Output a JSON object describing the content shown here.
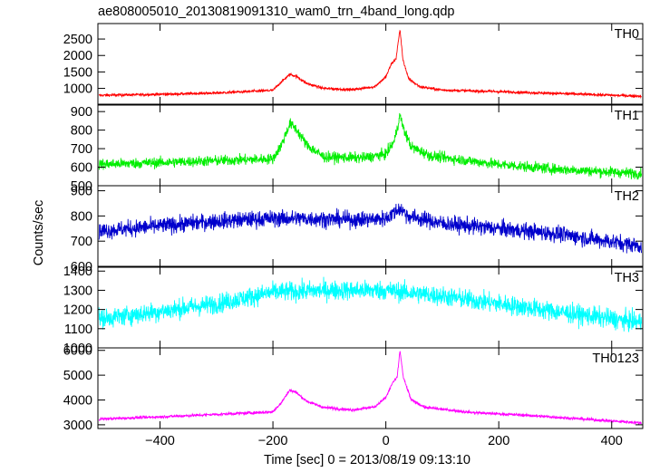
{
  "chart_data": {
    "type": "line",
    "title": "ae808005010_20130819091310_wam0_trn_4band_long.qdp",
    "xlabel": "Time [sec] 0 = 2013/08/19 09:13:10",
    "ylabel": "Counts/sec",
    "xlim": [
      -510,
      455
    ],
    "x_ticks": [
      -400,
      -200,
      0,
      200,
      400
    ],
    "x_tick_labels": [
      "−400",
      "−200",
      "0",
      "200",
      "400"
    ],
    "grid": false,
    "panels": [
      {
        "name": "TH0",
        "color": "#ff0000",
        "ylim": [
          520,
          2970
        ],
        "y_ticks": [
          1000,
          1500,
          2000,
          2500
        ],
        "y_tick_labels": [
          "1000",
          "1500",
          "2000",
          "2500"
        ],
        "noise": 40,
        "profile": [
          [
            -510,
            790
          ],
          [
            -400,
            820
          ],
          [
            -300,
            860
          ],
          [
            -200,
            940
          ],
          [
            -185,
            1200
          ],
          [
            -170,
            1420
          ],
          [
            -160,
            1380
          ],
          [
            -140,
            1150
          ],
          [
            -110,
            1000
          ],
          [
            -60,
            960
          ],
          [
            -20,
            1050
          ],
          [
            0,
            1350
          ],
          [
            10,
            1750
          ],
          [
            18,
            1900
          ],
          [
            25,
            2800
          ],
          [
            30,
            1900
          ],
          [
            40,
            1300
          ],
          [
            60,
            1050
          ],
          [
            100,
            950
          ],
          [
            200,
            900
          ],
          [
            300,
            850
          ],
          [
            455,
            760
          ]
        ]
      },
      {
        "name": "TH1",
        "color": "#00ee00",
        "ylim": [
          500,
          935
        ],
        "y_ticks": [
          500,
          600,
          700,
          800,
          900
        ],
        "y_tick_labels": [
          "500",
          "600",
          "700",
          "800",
          "900"
        ],
        "noise": 28,
        "profile": [
          [
            -510,
            615
          ],
          [
            -400,
            625
          ],
          [
            -300,
            635
          ],
          [
            -200,
            645
          ],
          [
            -185,
            720
          ],
          [
            -170,
            835
          ],
          [
            -160,
            810
          ],
          [
            -140,
            720
          ],
          [
            -110,
            655
          ],
          [
            -40,
            650
          ],
          [
            0,
            670
          ],
          [
            15,
            740
          ],
          [
            25,
            880
          ],
          [
            32,
            800
          ],
          [
            45,
            710
          ],
          [
            80,
            660
          ],
          [
            200,
            615
          ],
          [
            300,
            590
          ],
          [
            455,
            565
          ]
        ]
      },
      {
        "name": "TH2",
        "color": "#0000cc",
        "ylim": [
          600,
          920
        ],
        "y_ticks": [
          600,
          700,
          800,
          900
        ],
        "y_tick_labels": [
          "600",
          "700",
          "800",
          "900"
        ],
        "noise": 32,
        "profile": [
          [
            -510,
            740
          ],
          [
            -400,
            760
          ],
          [
            -300,
            780
          ],
          [
            -200,
            790
          ],
          [
            -150,
            790
          ],
          [
            -50,
            785
          ],
          [
            0,
            790
          ],
          [
            25,
            830
          ],
          [
            40,
            800
          ],
          [
            100,
            770
          ],
          [
            200,
            750
          ],
          [
            300,
            730
          ],
          [
            455,
            680
          ]
        ]
      },
      {
        "name": "TH3",
        "color": "#00ffff",
        "ylim": [
          1000,
          1420
        ],
        "y_ticks": [
          1000,
          1100,
          1200,
          1300,
          1400
        ],
        "y_tick_labels": [
          "1000",
          "1100",
          "1200",
          "1300",
          "1400"
        ],
        "noise": 50,
        "profile": [
          [
            -510,
            1150
          ],
          [
            -400,
            1190
          ],
          [
            -300,
            1230
          ],
          [
            -200,
            1290
          ],
          [
            -100,
            1300
          ],
          [
            0,
            1300
          ],
          [
            100,
            1270
          ],
          [
            200,
            1230
          ],
          [
            300,
            1190
          ],
          [
            455,
            1130
          ]
        ]
      },
      {
        "name": "TH0123",
        "color": "#ff00ff",
        "ylim": [
          2850,
          6100
        ],
        "y_ticks": [
          3000,
          4000,
          5000,
          6000
        ],
        "y_tick_labels": [
          "3000",
          "4000",
          "5000",
          "6000"
        ],
        "noise": 55,
        "profile": [
          [
            -510,
            3230
          ],
          [
            -400,
            3320
          ],
          [
            -300,
            3420
          ],
          [
            -200,
            3520
          ],
          [
            -185,
            3900
          ],
          [
            -170,
            4400
          ],
          [
            -160,
            4320
          ],
          [
            -140,
            3950
          ],
          [
            -110,
            3700
          ],
          [
            -60,
            3600
          ],
          [
            -20,
            3720
          ],
          [
            0,
            4100
          ],
          [
            12,
            4700
          ],
          [
            20,
            4900
          ],
          [
            25,
            6000
          ],
          [
            31,
            4900
          ],
          [
            45,
            4000
          ],
          [
            70,
            3700
          ],
          [
            150,
            3500
          ],
          [
            250,
            3380
          ],
          [
            350,
            3230
          ],
          [
            455,
            3070
          ]
        ]
      }
    ]
  }
}
